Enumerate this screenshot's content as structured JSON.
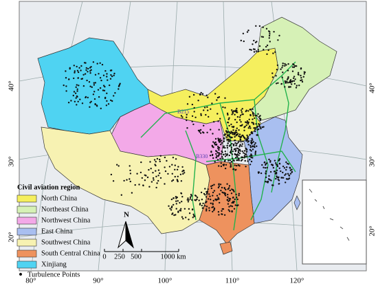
{
  "map": {
    "lat_labels_left": [
      "40°",
      "30°",
      "20°"
    ],
    "lat_labels_right": [
      "40°",
      "30°",
      "20°"
    ],
    "lon_labels": [
      "80°",
      "90°",
      "100°",
      "110°",
      "120°"
    ]
  },
  "legend": {
    "title": "Civil aviation region",
    "items": [
      "North China",
      "Northeast China",
      "Northwest China",
      "East China",
      "Southwest China",
      "South Central China",
      "Xinjiang",
      "Turbulence Points"
    ]
  },
  "scale_bar": {
    "labels": [
      "0",
      "250",
      "500",
      "1000 km"
    ]
  },
  "north_arrow": "N",
  "route_labels": [
    "B215",
    "B330"
  ]
}
